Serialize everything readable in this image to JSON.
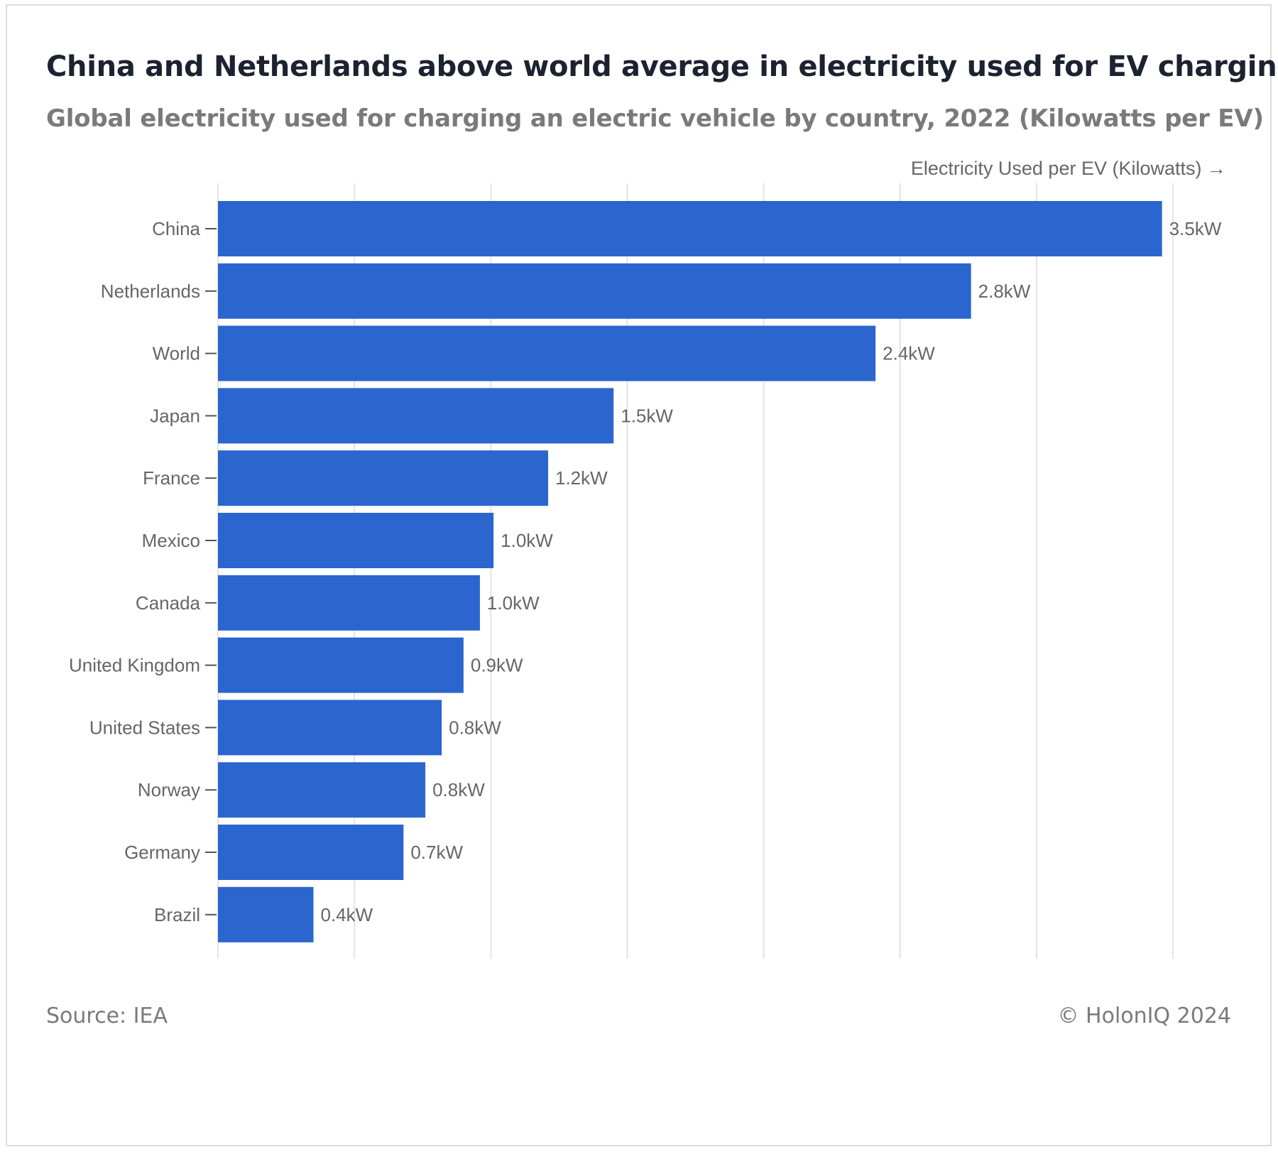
{
  "header": {
    "title": "China and Netherlands above world average in electricity used for EV charging",
    "subtitle": "Global electricity used for charging an electric vehicle by country, 2022 (Kilowatts per EV)"
  },
  "footer": {
    "source": "Source: IEA",
    "copyright": "© HolonIQ 2024"
  },
  "colors": {
    "bar": "#2b66cf",
    "grid": "#e4e4e4",
    "label": "#666666",
    "tick": "#555555"
  },
  "chart_data": {
    "type": "bar",
    "orientation": "horizontal",
    "xlabel": "Electricity Used per EV (Kilowatts) →",
    "ylabel": "",
    "xlim": [
      0,
      3.5
    ],
    "grid": true,
    "value_suffix": "kW",
    "categories": [
      "China",
      "Netherlands",
      "World",
      "Japan",
      "France",
      "Mexico",
      "Canada",
      "United Kingdom",
      "United States",
      "Norway",
      "Germany",
      "Brazil"
    ],
    "values": [
      3.46,
      2.76,
      2.41,
      1.45,
      1.21,
      1.01,
      0.96,
      0.9,
      0.82,
      0.76,
      0.68,
      0.35
    ],
    "data_labels": [
      "3.5kW",
      "2.8kW",
      "2.4kW",
      "1.5kW",
      "1.2kW",
      "1.0kW",
      "1.0kW",
      "0.9kW",
      "0.8kW",
      "0.8kW",
      "0.7kW",
      "0.4kW"
    ]
  }
}
